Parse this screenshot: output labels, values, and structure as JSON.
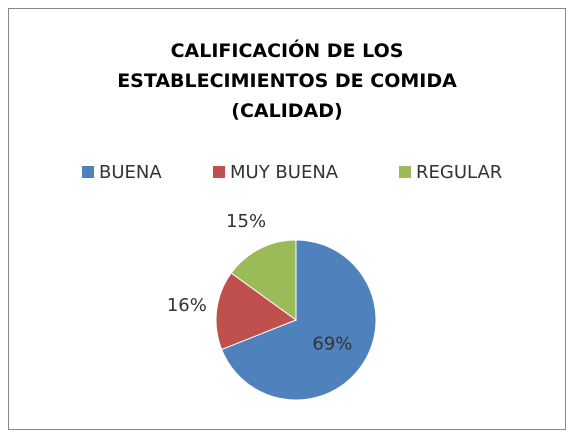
{
  "chart_data": {
    "type": "pie",
    "title": "CALIFICACIÓN DE LOS ESTABLECIMIENTOS DE COMIDA (CALIDAD)",
    "categories": [
      "BUENA",
      "MUY BUENA",
      "REGULAR"
    ],
    "values": [
      69,
      16,
      15
    ],
    "value_labels": [
      "69%",
      "16%",
      "15%"
    ],
    "colors": [
      "#4f81bd",
      "#c0504d",
      "#9bbb59"
    ],
    "legend": "top"
  }
}
